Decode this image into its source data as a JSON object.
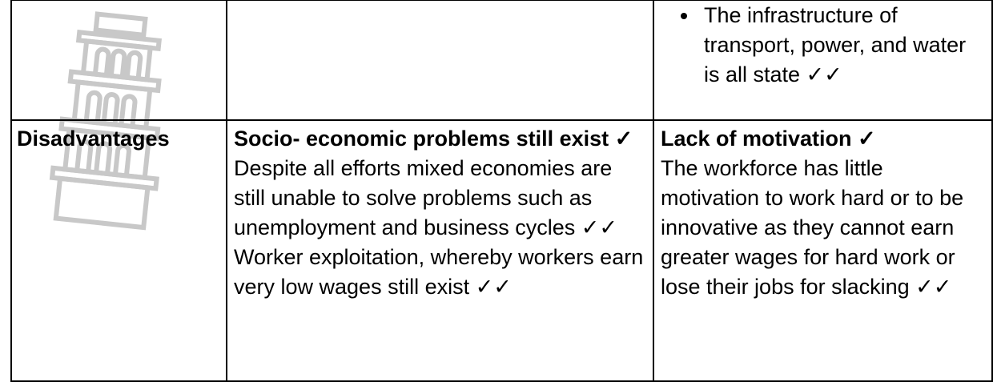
{
  "table": {
    "rows": [
      {
        "col3_bullets": [
          "The infrastructure of transport, power, and water is all state ✓✓"
        ]
      },
      {
        "label": "Disadvantages",
        "col2": {
          "heading": "Socio- economic problems still exist ✓",
          "paragraphs": [
            "Despite all efforts mixed economies are still unable to solve problems such as unemployment and business cycles ✓✓",
            "Worker exploitation, whereby workers earn very low wages still exist ✓✓"
          ]
        },
        "col3": {
          "heading": "Lack of motivation ✓",
          "paragraphs": [
            "The workforce has little motivation to work hard or to be innovative as they cannot earn greater wages for hard work or lose their jobs for slacking ✓✓"
          ]
        }
      }
    ]
  }
}
